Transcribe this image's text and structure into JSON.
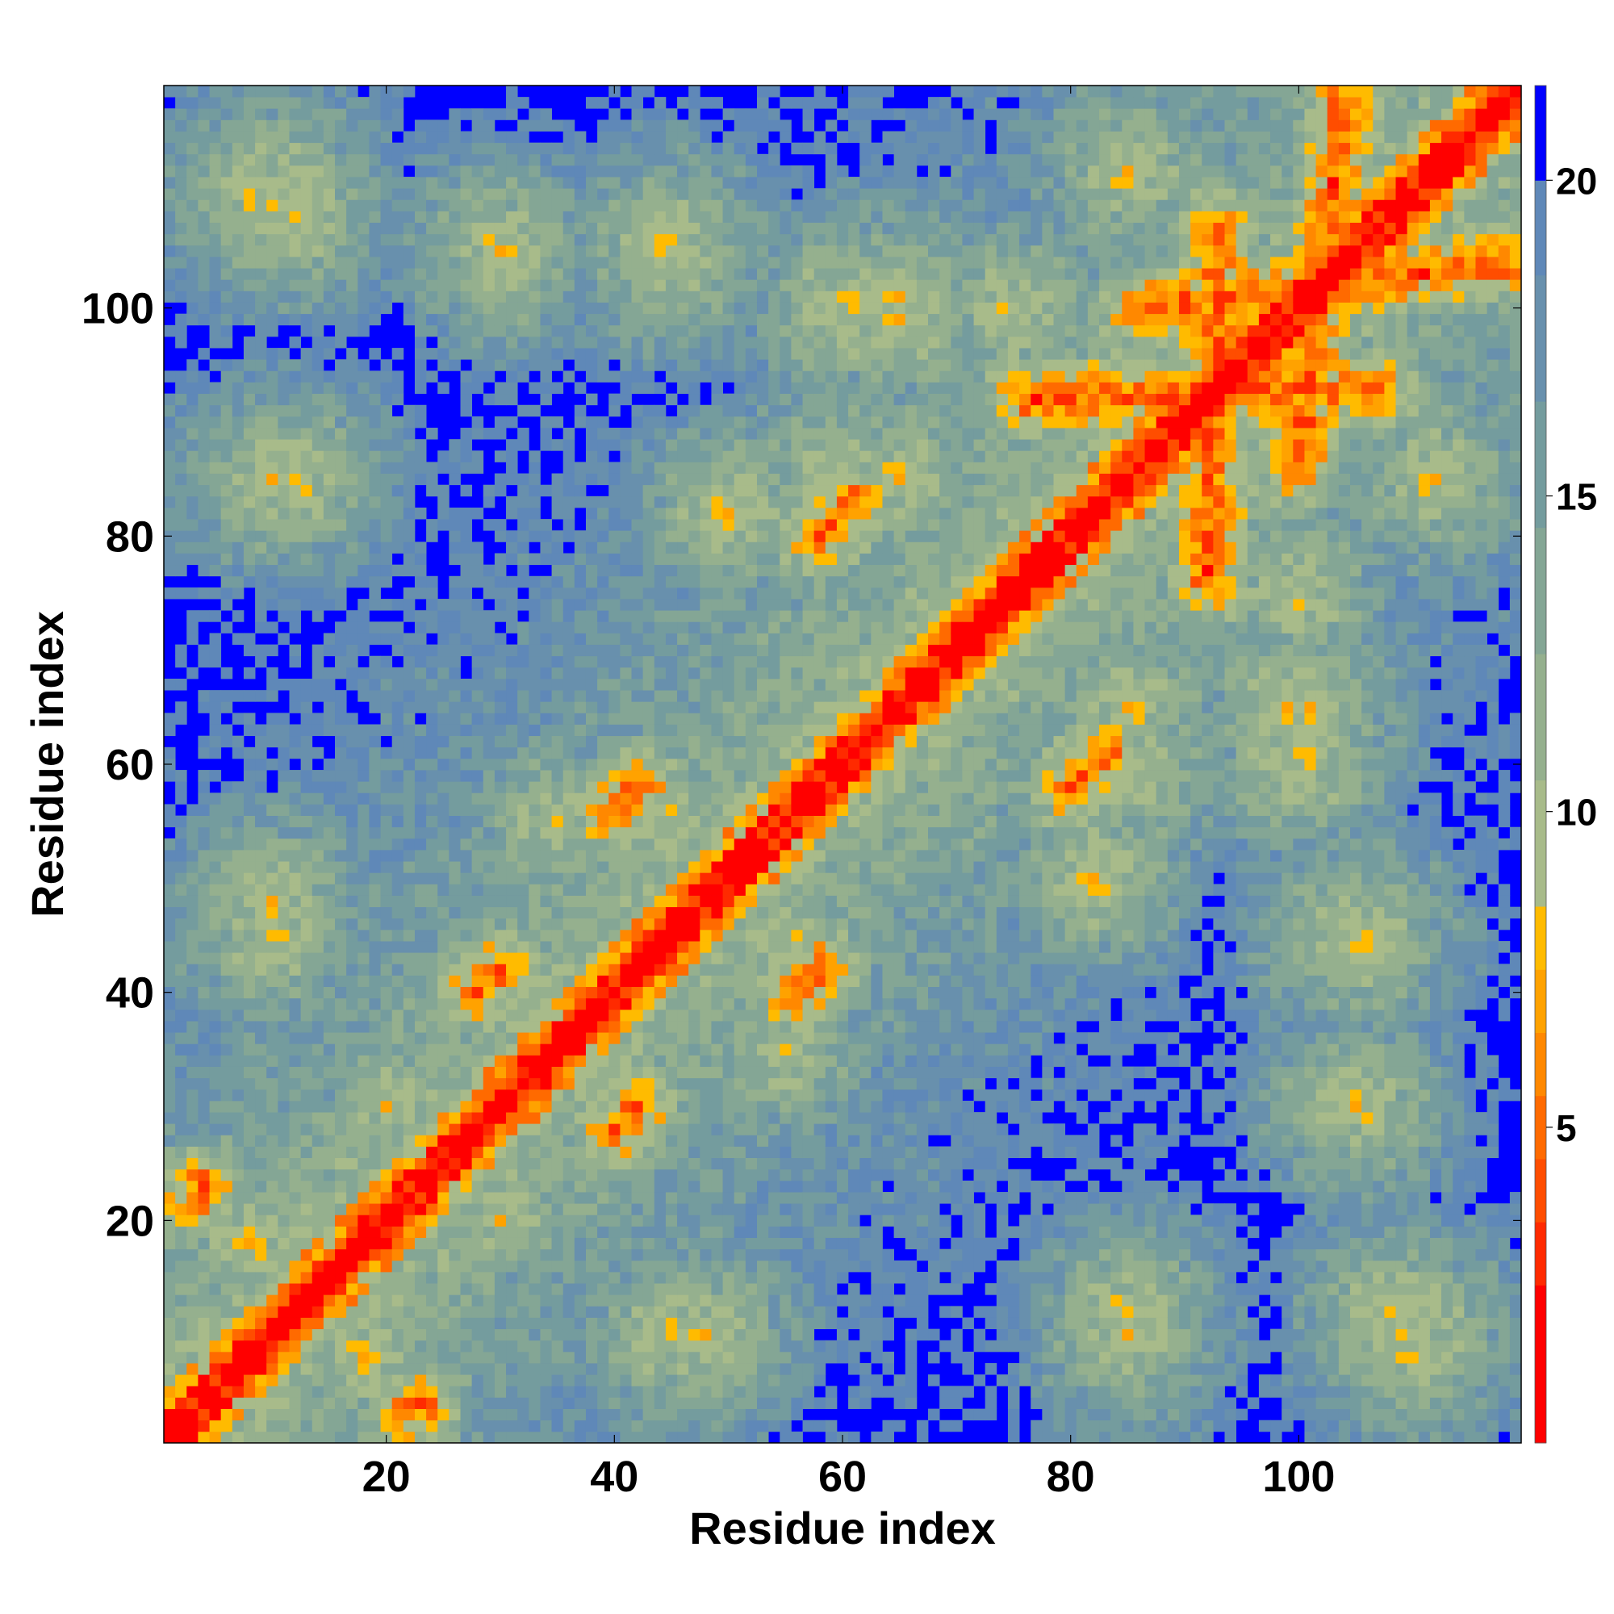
{
  "chart_data": {
    "type": "heatmap",
    "title": "",
    "xlabel": "Residue index",
    "ylabel": "Residue index",
    "n_residues": 119,
    "xlim": [
      0.5,
      119.5
    ],
    "ylim": [
      0.5,
      119.5
    ],
    "x_ticks": [
      20,
      40,
      60,
      80,
      100
    ],
    "y_ticks": [
      20,
      40,
      60,
      80,
      100
    ],
    "grid": false,
    "colorbar": {
      "label": "",
      "range": [
        0,
        21.5
      ],
      "ticks": [
        5,
        10,
        15,
        20
      ],
      "saturation_value": 20,
      "colors": [
        "#ff0000",
        "#ff2a00",
        "#ff4d00",
        "#ff6a00",
        "#ff8800",
        "#ffa200",
        "#ffbb00",
        "#a8bb8a",
        "#95b08e",
        "#84a695",
        "#749c9e",
        "#6890ad",
        "#5f88b8",
        "#0000ff"
      ],
      "bounds": [
        0,
        2.5,
        3.5,
        4.5,
        5.5,
        6.5,
        7.5,
        8.5,
        10.5,
        12.5,
        14.5,
        16.5,
        18.5,
        20,
        21.5
      ]
    },
    "description_of_values": "Symmetric residue-residue distance map (Angstrom-like scale); values >= 20 shown in blue",
    "features": {
      "diagonal_width": 1,
      "secondary_structure_contacts": [
        {
          "a": [
            3,
            22
          ],
          "b": [
            4,
            23
          ],
          "kind": "parallel"
        },
        {
          "a": [
            28,
            40
          ],
          "b": [
            30,
            42
          ],
          "kind": "parallel"
        },
        {
          "a": [
            40,
            56
          ],
          "b": [
            42,
            58
          ],
          "kind": "parallel"
        },
        {
          "a": [
            58,
            80
          ],
          "b": [
            61,
            83
          ],
          "kind": "parallel"
        },
        {
          "a": [
            86,
            100
          ],
          "b": [
            118,
            104
          ],
          "kind": "antiparallel"
        },
        {
          "a": [
            76,
            92
          ],
          "b": [
            107,
            93
          ],
          "kind": "antiparallel"
        }
      ]
    }
  }
}
